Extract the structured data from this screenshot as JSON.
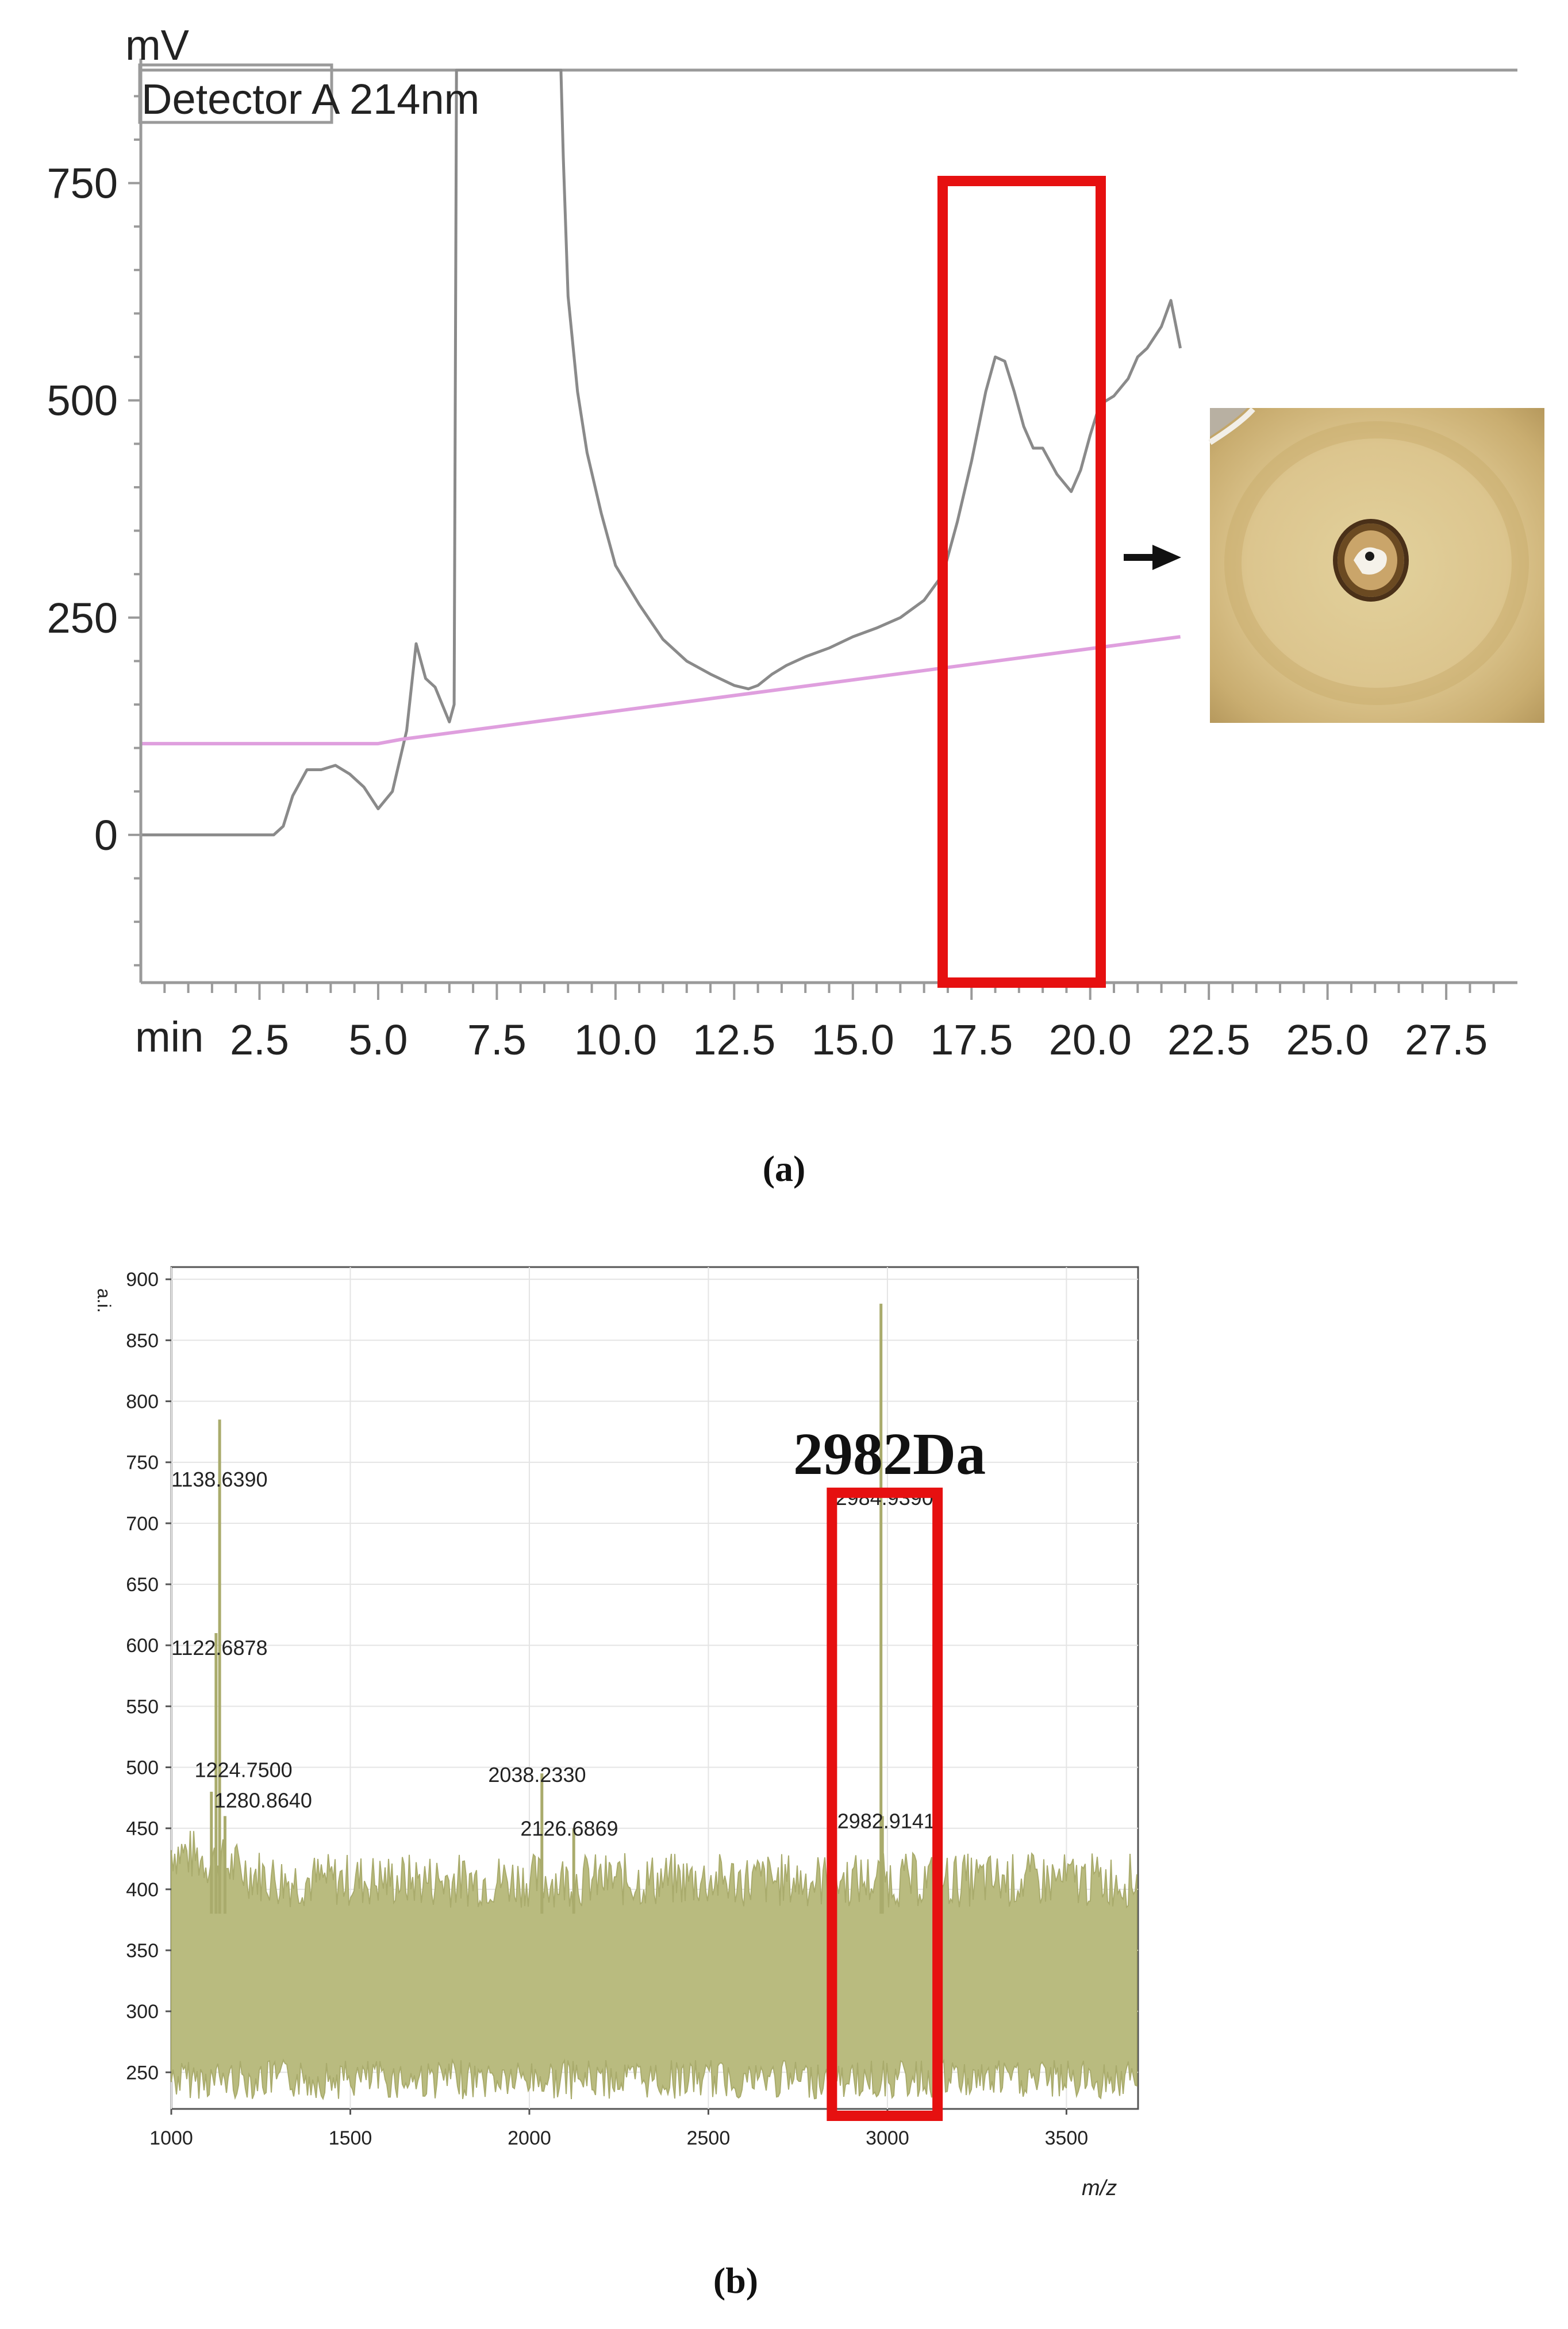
{
  "chart_data": [
    {
      "id": "a",
      "type": "line",
      "ylabel": "mV",
      "xlabel": "min",
      "legend_text": "Detector A 214nm",
      "xlim": [
        0,
        29
      ],
      "ylim": [
        -170,
        880
      ],
      "xticks": [
        2.5,
        5.0,
        7.5,
        10.0,
        12.5,
        15.0,
        17.5,
        20.0,
        22.5,
        25.0,
        27.5
      ],
      "xtick_labels": [
        "2.5",
        "5.0",
        "7.5",
        "10.0",
        "12.5",
        "15.0",
        "17.5",
        "20.0",
        "22.5",
        "25.0",
        "27.5"
      ],
      "yticks": [
        0,
        250,
        500,
        750
      ],
      "ytick_labels": [
        "0",
        "250",
        "500",
        "750"
      ],
      "series": [
        {
          "color": "#8a8a8a",
          "x": [
            0.0,
            2.8,
            3.0,
            3.2,
            3.5,
            3.8,
            4.1,
            4.4,
            4.7,
            5.0,
            5.3,
            5.6,
            5.8,
            6.0,
            6.2,
            6.5,
            6.6,
            6.65,
            6.7,
            8.85,
            8.9,
            9.0,
            9.2,
            9.4,
            9.7,
            10.0,
            10.5,
            11.0,
            11.5,
            12.0,
            12.5,
            12.8,
            13.0,
            13.3,
            13.6,
            14.0,
            14.5,
            15.0,
            15.5,
            16.0,
            16.5,
            16.9,
            17.2,
            17.5,
            17.8,
            18.0,
            18.2,
            18.4,
            18.6,
            18.8,
            19.0,
            19.3,
            19.6,
            19.8,
            20.0,
            20.2,
            20.5,
            20.8,
            21.0,
            21.2,
            21.5,
            21.7,
            21.9
          ],
          "y": [
            0,
            0,
            10,
            45,
            75,
            75,
            80,
            70,
            55,
            30,
            50,
            120,
            220,
            180,
            170,
            130,
            150,
            880,
            880,
            880,
            780,
            620,
            510,
            440,
            370,
            310,
            265,
            225,
            200,
            185,
            172,
            168,
            172,
            185,
            195,
            205,
            215,
            228,
            238,
            250,
            270,
            300,
            360,
            430,
            510,
            550,
            545,
            510,
            470,
            445,
            445,
            415,
            395,
            420,
            460,
            495,
            505,
            525,
            550,
            560,
            585,
            615,
            560
          ]
        },
        {
          "color": "#df9fde",
          "x": [
            0.0,
            5.0,
            5.5,
            21.9
          ],
          "y": [
            105,
            105,
            110,
            228
          ]
        }
      ],
      "highlight_box": {
        "x0": 16.9,
        "x1": 20.0,
        "color": "#e61010"
      },
      "inset_photo": "agar-diffusion-zone-photo",
      "arrow": "right-arrow"
    },
    {
      "id": "b",
      "type": "line",
      "ylabel": "a.i.",
      "xlabel": "m/z",
      "xlim": [
        1000,
        3700
      ],
      "ylim": [
        220,
        910
      ],
      "xticks": [
        1000,
        1500,
        2000,
        2500,
        3000,
        3500
      ],
      "xtick_labels": [
        "1000",
        "1500",
        "2000",
        "2500",
        "3000",
        "3500"
      ],
      "yticks": [
        250,
        300,
        350,
        400,
        450,
        500,
        550,
        600,
        650,
        700,
        750,
        800,
        850,
        900
      ],
      "ytick_labels": [
        "250",
        "300",
        "350",
        "400",
        "450",
        "500",
        "550",
        "600",
        "650",
        "700",
        "750",
        "800",
        "850",
        "900"
      ],
      "noise_band": {
        "low": 270,
        "high": 400,
        "color": "#b9bb7f"
      },
      "peaks": [
        {
          "x": 1125,
          "y": 610
        },
        {
          "x": 1135,
          "y": 785
        },
        {
          "x": 1112,
          "y": 480
        },
        {
          "x": 1150,
          "y": 460
        },
        {
          "x": 2035,
          "y": 495
        },
        {
          "x": 2124,
          "y": 450
        },
        {
          "x": 2982,
          "y": 880
        },
        {
          "x": 2986,
          "y": 460
        }
      ],
      "peak_labels": [
        {
          "x": 1000,
          "y": 730,
          "text": "1138.6390"
        },
        {
          "x": 1000,
          "y": 592,
          "text": "1122.6878"
        },
        {
          "x": 1065,
          "y": 492,
          "text": "1224.7500"
        },
        {
          "x": 1120,
          "y": 467,
          "text": "1280.8640"
        },
        {
          "x": 1885,
          "y": 488,
          "text": "2038.2330"
        },
        {
          "x": 1975,
          "y": 444,
          "text": "2126.6869"
        },
        {
          "x": 2855,
          "y": 715,
          "text": "2984.9390"
        },
        {
          "x": 2860,
          "y": 450,
          "text": "2982.9141"
        }
      ],
      "annotation": "2982Da",
      "highlight_box": {
        "x0": 2845,
        "x1": 3140,
        "y_top": 725,
        "color": "#e61010"
      }
    }
  ],
  "captions": {
    "a": "(a)",
    "b": "(b)"
  }
}
